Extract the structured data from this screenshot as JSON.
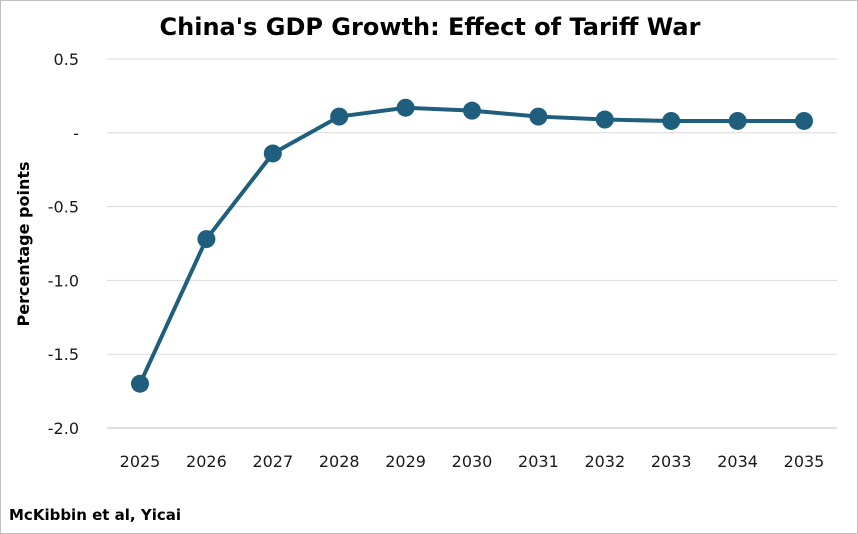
{
  "source": "McKibbin et al, Yicai",
  "colors": {
    "series": "#1f5f7d",
    "grid": "#d9d9d9",
    "axis": "#bfbfbf"
  },
  "chart_data": {
    "type": "line",
    "title": "China's GDP Growth: Effect of Tariff War",
    "xlabel": "",
    "ylabel": "Percentage points",
    "categories": [
      "2025",
      "2026",
      "2027",
      "2028",
      "2029",
      "2030",
      "2031",
      "2032",
      "2033",
      "2034",
      "2035"
    ],
    "series": [
      {
        "values": [
          -1.7,
          -0.72,
          -0.14,
          0.11,
          0.17,
          0.15,
          0.11,
          0.09,
          0.08,
          0.08,
          0.08
        ]
      }
    ],
    "ylim": [
      -2.0,
      0.5
    ],
    "yticks": [
      0.5,
      0,
      -0.5,
      -1.0,
      -1.5,
      -2.0
    ],
    "ytick_labels": [
      "0.5",
      "-",
      "-0.5",
      "-1.0",
      "-1.5",
      "-2.0"
    ],
    "grid": true,
    "legend": "none",
    "markers": true
  }
}
